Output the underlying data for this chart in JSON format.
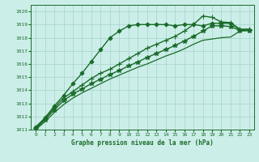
{
  "title": "Graphe pression niveau de la mer (hPa)",
  "background_color": "#cceee8",
  "grid_color": "#aad8d0",
  "line_color": "#1a6b2a",
  "xlim": [
    -0.5,
    23.5
  ],
  "ylim": [
    1011,
    1020.5
  ],
  "xticks": [
    0,
    1,
    2,
    3,
    4,
    5,
    6,
    7,
    8,
    9,
    10,
    11,
    12,
    13,
    14,
    15,
    16,
    17,
    18,
    19,
    20,
    21,
    22,
    23
  ],
  "yticks": [
    1011,
    1012,
    1013,
    1014,
    1015,
    1016,
    1017,
    1018,
    1019,
    1020
  ],
  "series": [
    {
      "x": [
        0,
        1,
        2,
        3,
        4,
        5,
        6,
        7,
        8,
        9,
        10,
        11,
        12,
        13,
        14,
        15,
        16,
        17,
        18,
        19,
        20,
        21,
        22,
        23
      ],
      "y": [
        1011.2,
        1011.9,
        1012.8,
        1013.6,
        1014.5,
        1015.3,
        1016.2,
        1017.1,
        1018.0,
        1018.5,
        1018.9,
        1019.0,
        1019.0,
        1019.0,
        1019.0,
        1018.9,
        1019.0,
        1019.0,
        1018.9,
        1019.1,
        1019.1,
        1019.1,
        1018.6,
        1018.6
      ],
      "marker": "D",
      "markersize": 2.5,
      "linewidth": 1.0,
      "markevery": 1
    },
    {
      "x": [
        0,
        1,
        2,
        3,
        4,
        5,
        6,
        7,
        8,
        9,
        10,
        11,
        12,
        13,
        14,
        15,
        16,
        17,
        18,
        19,
        20,
        21,
        22,
        23
      ],
      "y": [
        1011.1,
        1011.85,
        1012.65,
        1013.4,
        1013.9,
        1014.4,
        1014.9,
        1015.3,
        1015.6,
        1016.0,
        1016.4,
        1016.8,
        1017.2,
        1017.5,
        1017.8,
        1018.1,
        1018.5,
        1019.0,
        1019.65,
        1019.55,
        1019.2,
        1019.15,
        1018.65,
        1018.65
      ],
      "marker": "+",
      "markersize": 5,
      "linewidth": 1.0,
      "markevery": 1
    },
    {
      "x": [
        0,
        1,
        2,
        3,
        4,
        5,
        6,
        7,
        8,
        9,
        10,
        11,
        12,
        13,
        14,
        15,
        16,
        17,
        18,
        19,
        20,
        21,
        22,
        23
      ],
      "y": [
        1011.05,
        1011.75,
        1012.5,
        1013.2,
        1013.7,
        1014.1,
        1014.5,
        1014.85,
        1015.2,
        1015.5,
        1015.85,
        1016.15,
        1016.5,
        1016.8,
        1017.1,
        1017.4,
        1017.75,
        1018.1,
        1018.5,
        1018.9,
        1018.9,
        1018.85,
        1018.55,
        1018.55
      ],
      "marker": "*",
      "markersize": 4,
      "linewidth": 1.0,
      "markevery": 1
    },
    {
      "x": [
        0,
        1,
        2,
        3,
        4,
        5,
        6,
        7,
        8,
        9,
        10,
        11,
        12,
        13,
        14,
        15,
        16,
        17,
        18,
        19,
        20,
        21,
        22,
        23
      ],
      "y": [
        1011.0,
        1011.6,
        1012.3,
        1012.9,
        1013.4,
        1013.8,
        1014.15,
        1014.5,
        1014.85,
        1015.15,
        1015.45,
        1015.75,
        1016.0,
        1016.3,
        1016.6,
        1016.85,
        1017.15,
        1017.5,
        1017.8,
        1017.9,
        1018.0,
        1018.05,
        1018.5,
        1018.55
      ],
      "marker": null,
      "markersize": 0,
      "linewidth": 0.9
    }
  ]
}
